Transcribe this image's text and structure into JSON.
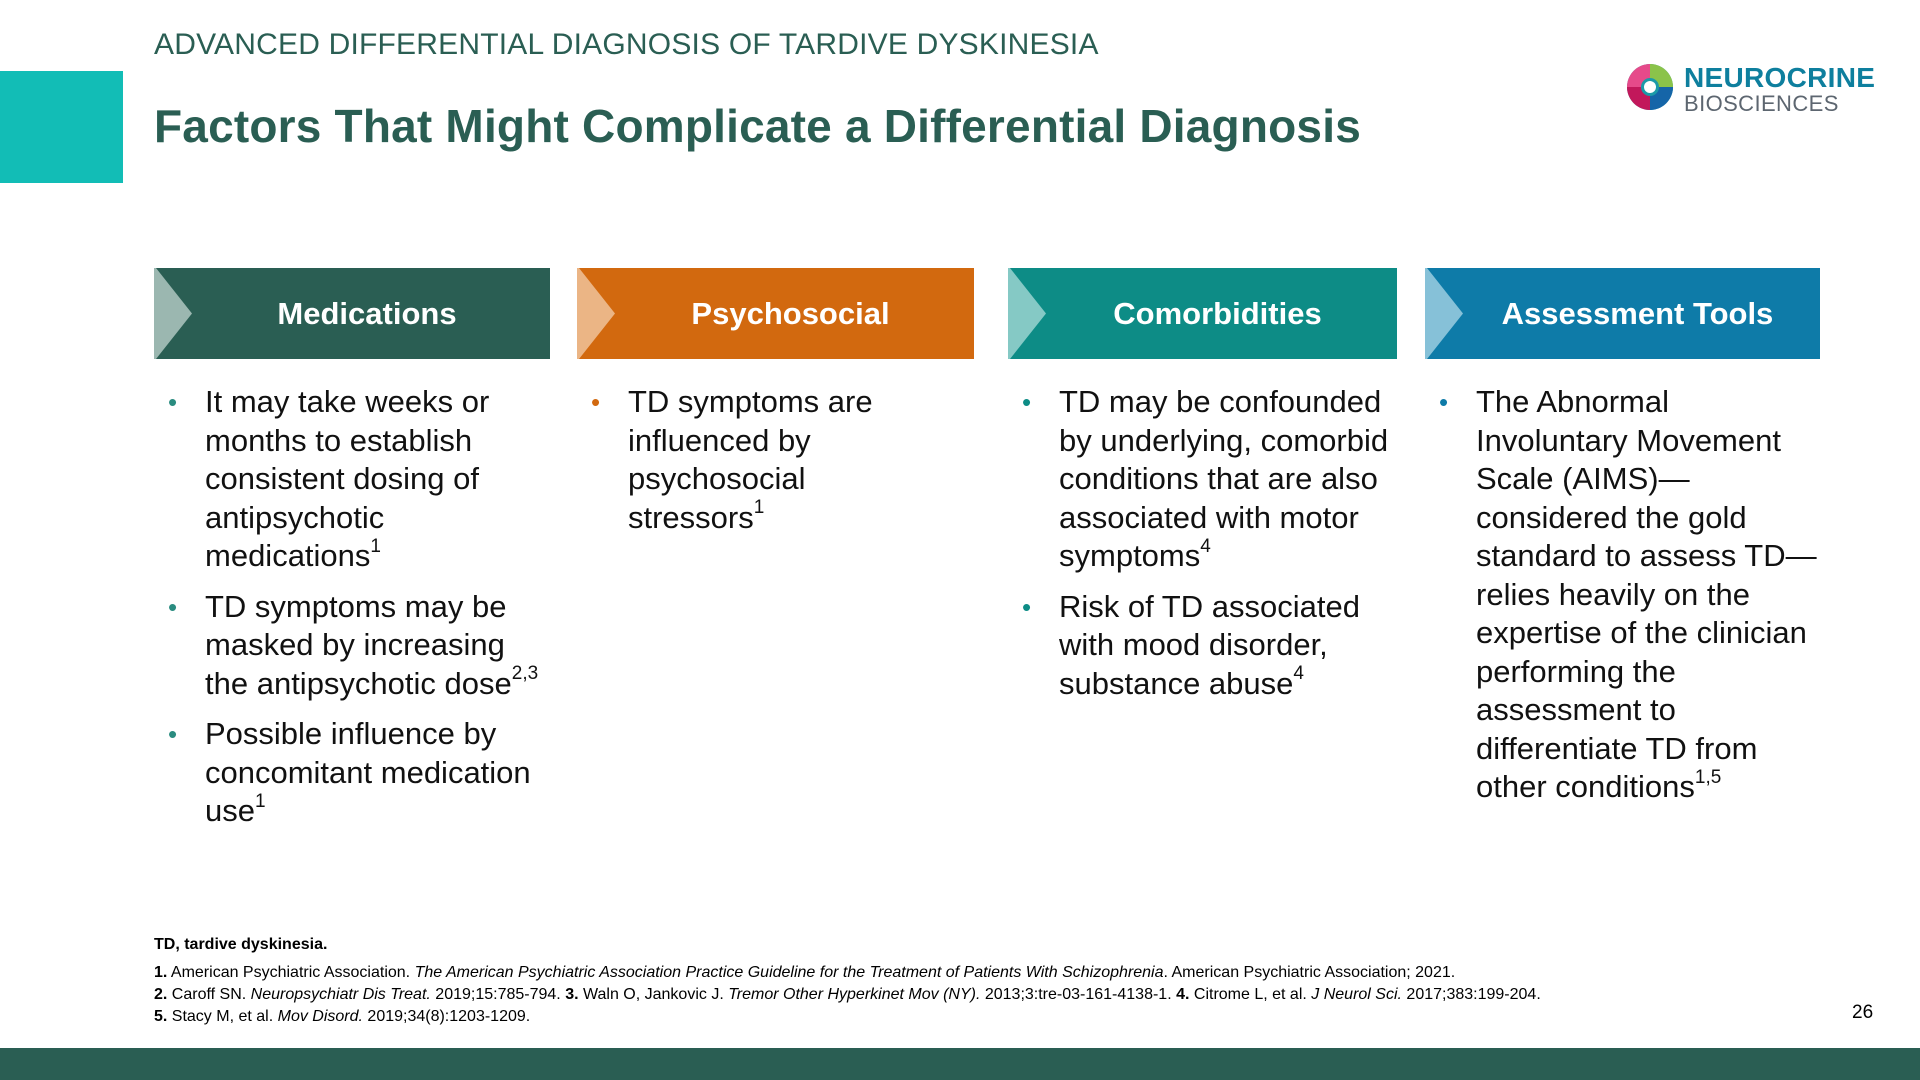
{
  "header": {
    "section": "ADVANCED DIFFERENTIAL DIAGNOSIS OF TARDIVE DYSKINESIA",
    "title": "Factors That Might Complicate a Differential Diagnosis"
  },
  "logo": {
    "name": "NEUROCRINE",
    "sub": "BIOSCIENCES",
    "icon": "neurocrine-swirl-logo"
  },
  "colors": {
    "dark_green": "#2a5e53",
    "teal_accent": "#12bdb6",
    "medications": "#2a5e53",
    "psychosocial": "#d2690f",
    "comorbidities": "#0d8c86",
    "assessment": "#0e7ba8"
  },
  "columns": [
    {
      "title": "Medications",
      "points": [
        {
          "text": "It may take weeks or months to establish consistent dosing of antipsychotic medications",
          "sup": "1"
        },
        {
          "text": "TD symptoms may be masked by increasing the antipsychotic dose",
          "sup": "2,3"
        },
        {
          "text": "Possible influence by concomitant medication use",
          "sup": "1"
        }
      ]
    },
    {
      "title": "Psychosocial",
      "points": [
        {
          "text": "TD symptoms are influenced by psychosocial stressors",
          "sup": "1"
        }
      ]
    },
    {
      "title": "Comorbidities",
      "points": [
        {
          "text": "TD may be confounded by underlying, comorbid conditions that are also associated with motor symptoms",
          "sup": "4"
        },
        {
          "text": "Risk of TD associated with mood disorder, substance abuse",
          "sup": "4"
        }
      ]
    },
    {
      "title": "Assessment Tools",
      "points": [
        {
          "text": "The Abnormal Involuntary Movement Scale (AIMS)—considered the gold standard to assess TD—relies heavily on the expertise of the clinician performing the assessment to differentiate TD from other conditions",
          "sup": "1,5"
        }
      ]
    }
  ],
  "footnotes": {
    "abbreviation": "TD, tardive dyskinesia.",
    "ref1": {
      "num": "1.",
      "pre": " American Psychiatric Association. ",
      "italic": "The American Psychiatric Association Practice Guideline for the Treatment of Patients With Schizophrenia",
      "post": ". American Psychiatric Association; 2021."
    },
    "ref2": {
      "num": "2.",
      "pre": " Caroff SN. ",
      "italic": "Neuropsychiatr Dis Treat.",
      "post": " 2019;15:785-794. "
    },
    "ref3": {
      "num": "3.",
      "pre": " Waln O, Jankovic J. ",
      "italic": "Tremor Other Hyperkinet Mov (NY).",
      "post": " 2013;3:tre-03-161-4138-1. "
    },
    "ref4": {
      "num": "4.",
      "pre": " Citrome L, et al. ",
      "italic": "J Neurol Sci.",
      "post": " 2017;383:199-204."
    },
    "ref5": {
      "num": "5.",
      "pre": " Stacy M, et al. ",
      "italic": "Mov Disord.",
      "post": " 2019;34(8):1203-1209."
    }
  },
  "page_number": "26"
}
